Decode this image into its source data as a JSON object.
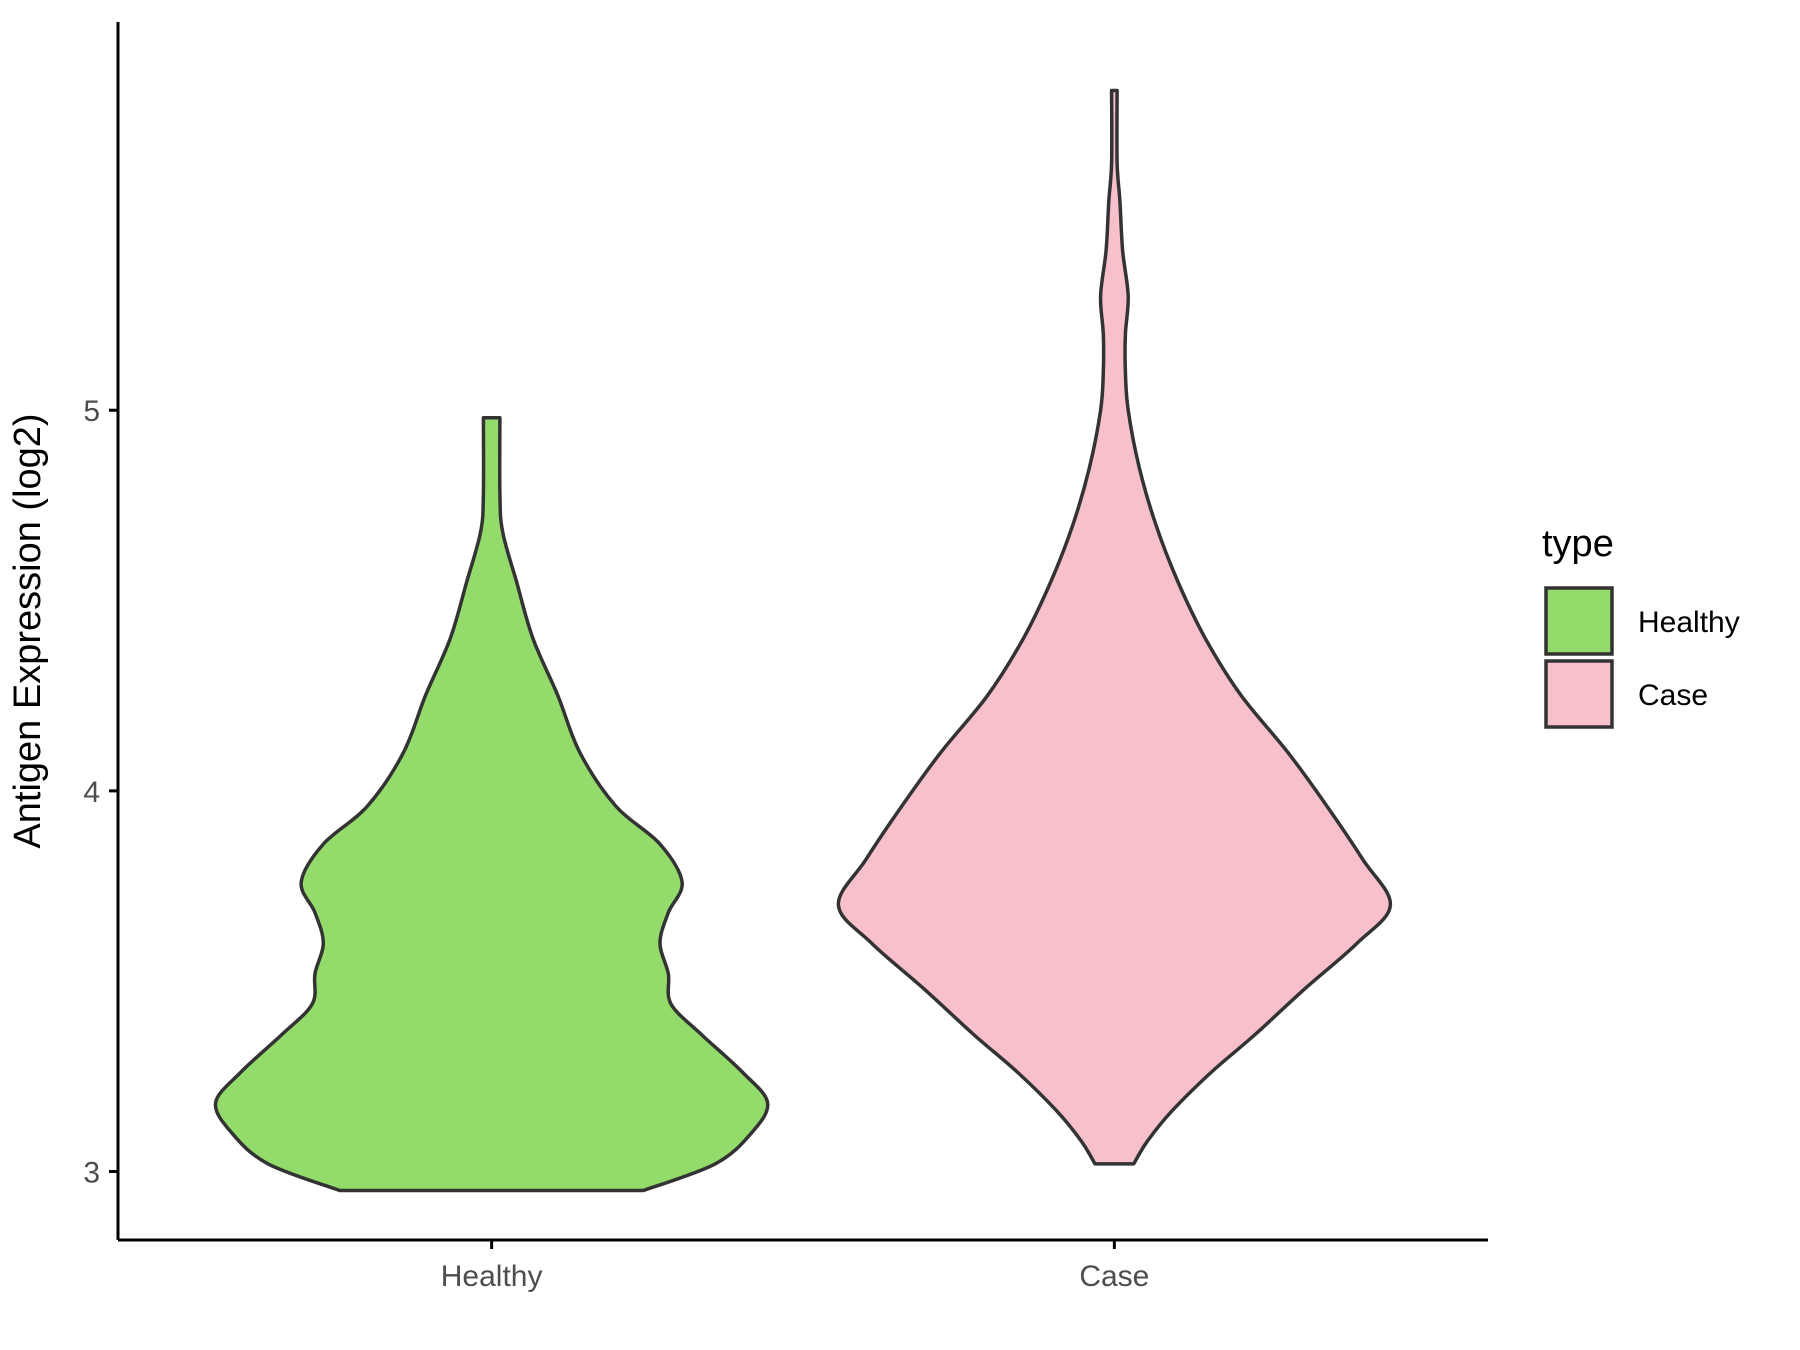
{
  "chart_data": {
    "type": "violin",
    "title": "",
    "xlabel": "",
    "ylabel": "Antigen Expression (log2)",
    "categories": [
      "Healthy",
      "Case"
    ],
    "y_ticks": [
      3,
      4,
      5
    ],
    "ylim": [
      2.82,
      6.02
    ],
    "grid": false,
    "legend": {
      "title": "type",
      "placement": "right",
      "entries": [
        {
          "label": "Healthy",
          "color": "#93DC6B"
        },
        {
          "label": "Case",
          "color": "#F7C0CB"
        }
      ]
    },
    "series": [
      {
        "name": "Healthy",
        "color": "#93DC6B",
        "y_min": 2.95,
        "y_max": 4.98,
        "density_profile": [
          [
            2.95,
            0.55
          ],
          [
            3.02,
            0.81
          ],
          [
            3.1,
            0.94
          ],
          [
            3.18,
            1.0
          ],
          [
            3.26,
            0.91
          ],
          [
            3.36,
            0.76
          ],
          [
            3.44,
            0.65
          ],
          [
            3.52,
            0.64
          ],
          [
            3.6,
            0.61
          ],
          [
            3.68,
            0.64
          ],
          [
            3.76,
            0.69
          ],
          [
            3.86,
            0.61
          ],
          [
            3.96,
            0.45
          ],
          [
            4.1,
            0.32
          ],
          [
            4.25,
            0.24
          ],
          [
            4.4,
            0.15
          ],
          [
            4.55,
            0.09
          ],
          [
            4.68,
            0.04
          ],
          [
            4.78,
            0.03
          ],
          [
            4.98,
            0.03
          ]
        ]
      },
      {
        "name": "Case",
        "color": "#F7C0CB",
        "y_min": 3.02,
        "y_max": 5.84,
        "density_profile": [
          [
            3.02,
            0.07
          ],
          [
            3.08,
            0.12
          ],
          [
            3.16,
            0.21
          ],
          [
            3.26,
            0.35
          ],
          [
            3.36,
            0.51
          ],
          [
            3.48,
            0.69
          ],
          [
            3.6,
            0.88
          ],
          [
            3.7,
            1.0
          ],
          [
            3.82,
            0.9
          ],
          [
            3.96,
            0.77
          ],
          [
            4.1,
            0.63
          ],
          [
            4.25,
            0.46
          ],
          [
            4.4,
            0.33
          ],
          [
            4.55,
            0.23
          ],
          [
            4.7,
            0.15
          ],
          [
            4.85,
            0.09
          ],
          [
            5.0,
            0.05
          ],
          [
            5.1,
            0.04
          ],
          [
            5.2,
            0.04
          ],
          [
            5.3,
            0.05
          ],
          [
            5.42,
            0.03
          ],
          [
            5.55,
            0.02
          ],
          [
            5.65,
            0.01
          ],
          [
            5.84,
            0.01
          ]
        ]
      }
    ]
  }
}
